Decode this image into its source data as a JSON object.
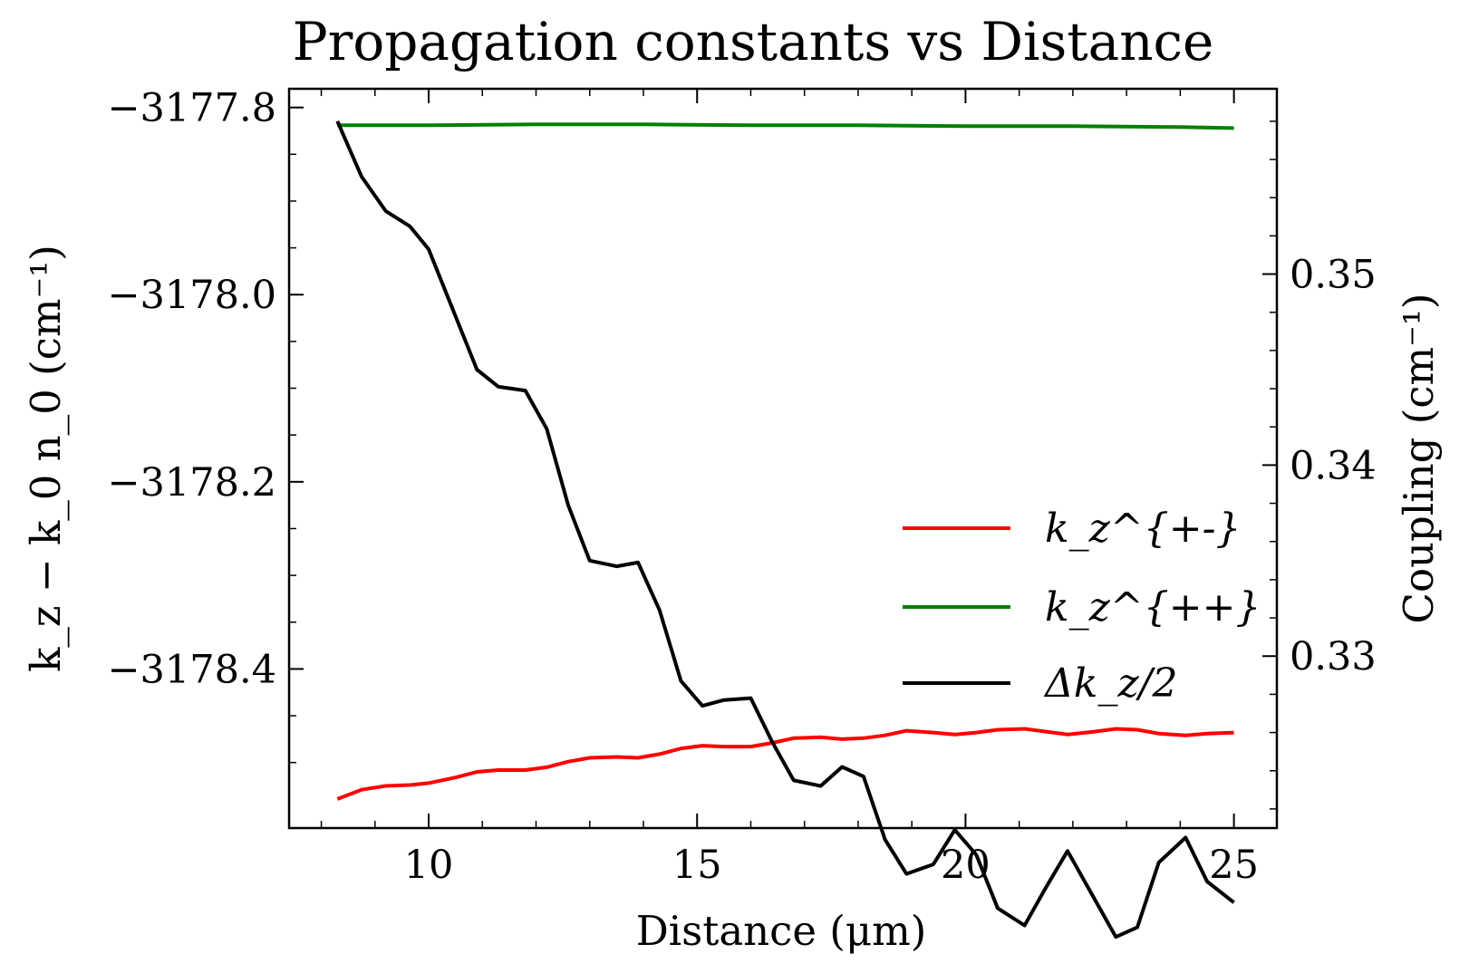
{
  "chart_data": {
    "type": "line",
    "title": "Propagation constants vs Distance",
    "xlabel": "Distance (μm)",
    "ylabel_left": "k_z − k_0 n_0 (cm⁻¹)",
    "ylabel_right": "Coupling (cm⁻¹)",
    "xlim": [
      7.4,
      25.8
    ],
    "ylim_left": [
      -3178.57,
      -3177.78
    ],
    "ylim_right": [
      0.321,
      0.3597
    ],
    "x_ticks": [
      10,
      15,
      20,
      25
    ],
    "x_tick_labels": [
      "10",
      "15",
      "20",
      "25"
    ],
    "y_left_ticks": [
      -3177.8,
      -3178.0,
      -3178.2,
      -3178.4
    ],
    "y_left_tick_labels": [
      "−3177.8",
      "−3178.0",
      "−3178.2",
      "−3178.4"
    ],
    "y_right_ticks": [
      0.35,
      0.34,
      0.33
    ],
    "y_right_tick_labels": [
      "0.35",
      "0.34",
      "0.33"
    ],
    "grid": false,
    "legend_position": "lower-right",
    "series": [
      {
        "name": "k_z^{+-}",
        "axis": "left",
        "color": "#ff0000",
        "x": [
          8.3,
          8.75,
          9.2,
          9.65,
          10.0,
          10.5,
          10.9,
          11.3,
          11.8,
          12.2,
          12.6,
          13.0,
          13.5,
          13.9,
          14.3,
          14.7,
          15.1,
          15.5,
          16.0,
          16.4,
          16.8,
          17.3,
          17.7,
          18.1,
          18.5,
          18.9,
          19.4,
          19.8,
          20.2,
          20.6,
          21.1,
          21.5,
          21.9,
          22.4,
          22.8,
          23.2,
          23.6,
          24.1,
          24.5,
          25.0
        ],
        "y": [
          -3178.539,
          -3178.529,
          -3178.525,
          -3178.524,
          -3178.522,
          -3178.516,
          -3178.51,
          -3178.508,
          -3178.508,
          -3178.505,
          -3178.499,
          -3178.495,
          -3178.494,
          -3178.495,
          -3178.491,
          -3178.485,
          -3178.482,
          -3178.483,
          -3178.483,
          -3178.479,
          -3178.474,
          -3178.473,
          -3178.475,
          -3178.474,
          -3178.471,
          -3178.466,
          -3178.468,
          -3178.47,
          -3178.468,
          -3178.465,
          -3178.464,
          -3178.467,
          -3178.47,
          -3178.467,
          -3178.464,
          -3178.465,
          -3178.469,
          -3178.471,
          -3178.469,
          -3178.468
        ]
      },
      {
        "name": "k_z^{++}",
        "axis": "left",
        "color": "#008000",
        "x": [
          8.3,
          10.0,
          12.0,
          14.0,
          16.0,
          18.0,
          20.0,
          22.0,
          24.0,
          25.0
        ],
        "y": [
          -3177.819,
          -3177.819,
          -3177.818,
          -3177.818,
          -3177.819,
          -3177.819,
          -3177.82,
          -3177.82,
          -3177.821,
          -3177.822
        ]
      },
      {
        "name": "Δk_z/2",
        "axis": "right",
        "color": "#000000",
        "x": [
          8.3,
          8.75,
          9.2,
          9.65,
          10.0,
          10.5,
          10.9,
          11.3,
          11.8,
          12.2,
          12.6,
          13.0,
          13.5,
          13.9,
          14.3,
          14.7,
          15.1,
          15.5,
          16.0,
          16.4,
          16.8,
          17.3,
          17.7,
          18.1,
          18.5,
          18.9,
          19.4,
          19.8,
          20.2,
          20.6,
          21.1,
          21.5,
          21.9,
          22.4,
          22.8,
          23.2,
          23.6,
          24.1,
          24.5,
          25.0
        ],
        "y": [
          0.358,
          0.3551,
          0.3533,
          0.3525,
          0.3513,
          0.3478,
          0.345,
          0.3441,
          0.3439,
          0.3419,
          0.3379,
          0.335,
          0.3347,
          0.3349,
          0.3324,
          0.3287,
          0.3274,
          0.3277,
          0.3278,
          0.3255,
          0.3235,
          0.3232,
          0.3242,
          0.3237,
          0.3204,
          0.3186,
          0.3191,
          0.3209,
          0.3196,
          0.3168,
          0.3159,
          0.3179,
          0.3198,
          0.3173,
          0.3153,
          0.3158,
          0.3192,
          0.3205,
          0.3182,
          0.3171
        ]
      }
    ]
  }
}
